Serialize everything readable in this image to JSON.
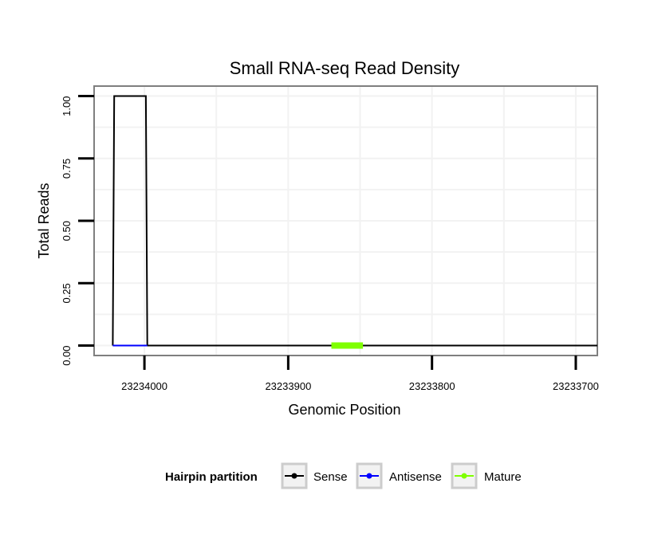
{
  "chart_data": {
    "type": "line",
    "title": "Small RNA-seq Read Density",
    "xlabel": "Genomic Position",
    "ylabel": "Total Reads",
    "xlim": [
      23234035,
      23233685
    ],
    "x_reversed": true,
    "ylim": [
      -0.04,
      1.04
    ],
    "x_ticks": [
      23234000,
      23233900,
      23233800,
      23233700
    ],
    "x_tick_labels": [
      "23234000",
      "23233900",
      "23233800",
      "23233700"
    ],
    "y_ticks": [
      0,
      0.25,
      0.5,
      0.75,
      1.0
    ],
    "y_tick_labels": [
      "0.00",
      "0.25",
      "0.50",
      "0.75",
      "1.00"
    ],
    "grid": true,
    "legend_placement": "bottom",
    "legend_title": "Hairpin partition",
    "series": [
      {
        "name": "Sense",
        "color": "#000000",
        "x": [
          23234022,
          23234021,
          23233999,
          23233998,
          23233685
        ],
        "y": [
          0,
          1,
          1,
          0,
          0
        ]
      },
      {
        "name": "Antisense",
        "color": "#0000ff",
        "x": [
          23234022,
          23233998
        ],
        "y": [
          0,
          0
        ]
      },
      {
        "name": "Mature",
        "color": "#7fff00",
        "x": [
          23233870,
          23233848
        ],
        "y": [
          0,
          0
        ]
      }
    ]
  }
}
